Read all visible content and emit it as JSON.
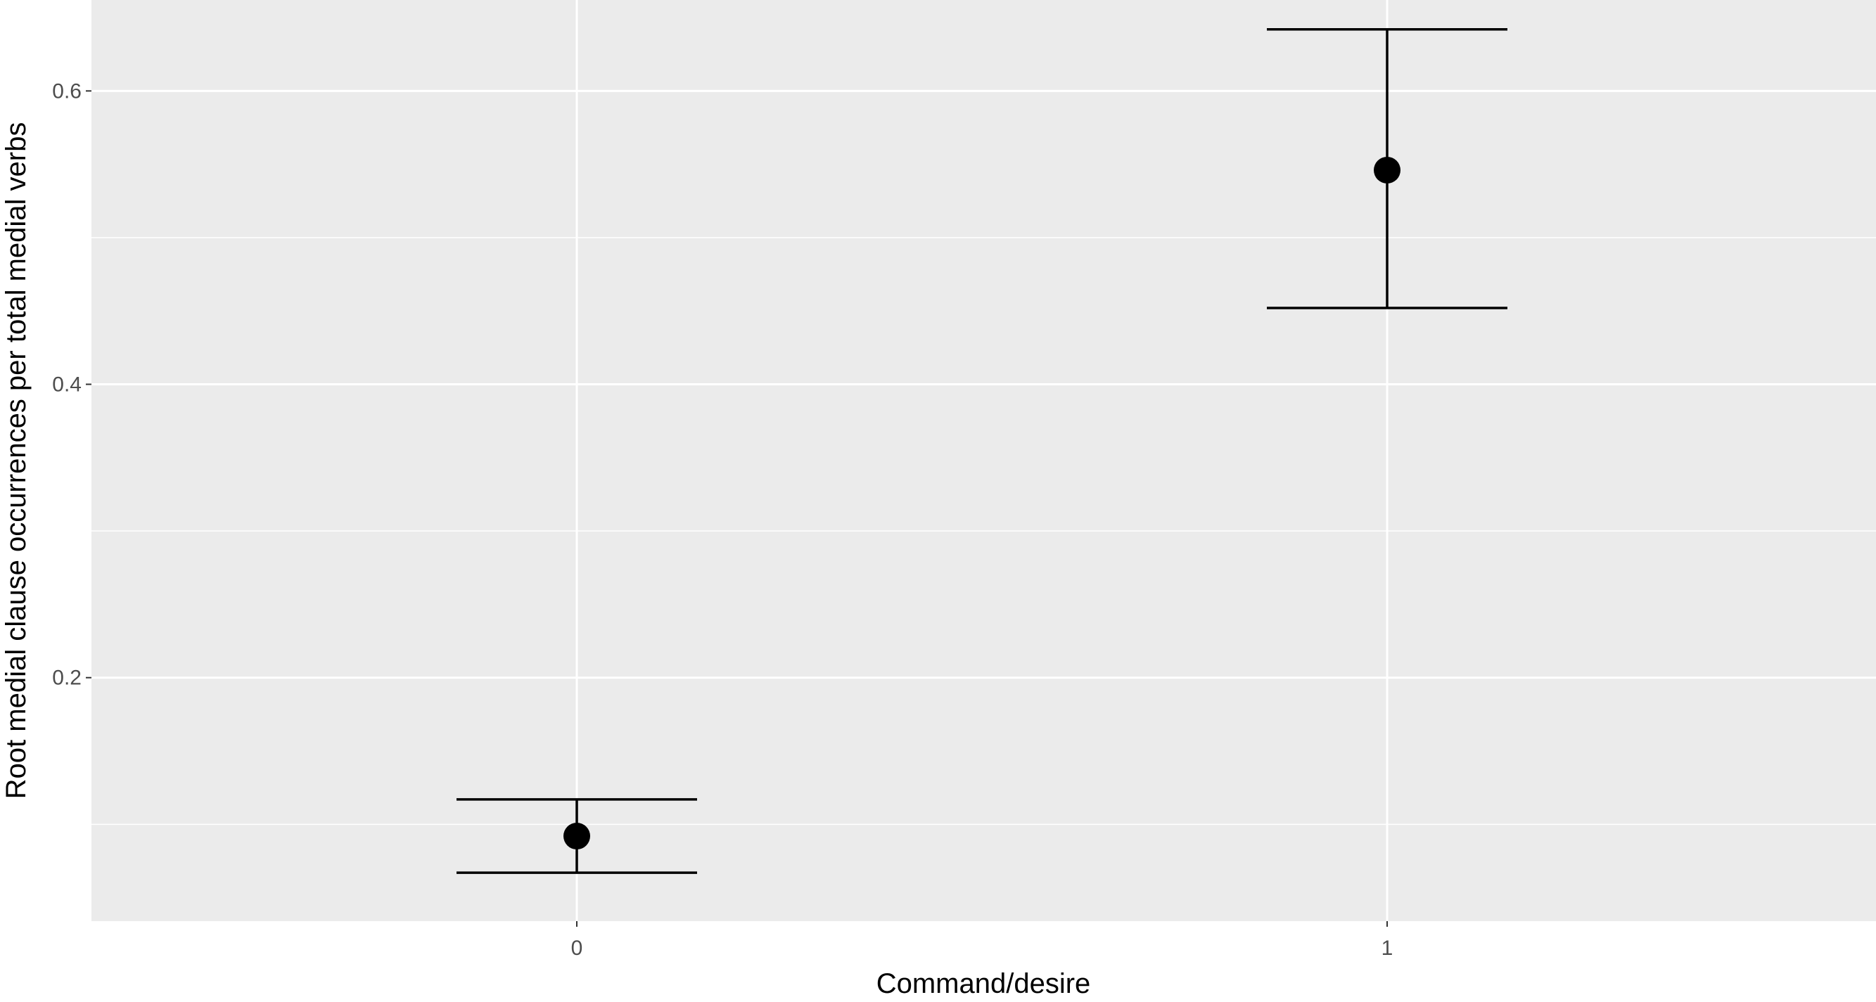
{
  "chart_data": {
    "type": "scatter",
    "title": "",
    "xlabel": "Command/desire",
    "ylabel": "Root medial clause occurrences per total medial verbs",
    "categories": [
      "0",
      "1"
    ],
    "series": [
      {
        "points": [
          {
            "x": "0",
            "y": 0.092,
            "ymin": 0.067,
            "ymax": 0.117
          },
          {
            "x": "1",
            "y": 0.546,
            "ymin": 0.452,
            "ymax": 0.642
          }
        ]
      }
    ],
    "ylim": [
      0.034,
      0.662
    ],
    "yticks": [
      0.2,
      0.4,
      0.6
    ],
    "yticks_labels": [
      "0.2",
      "0.4",
      "0.6"
    ],
    "grid": true,
    "legend": "none",
    "colors": {
      "panel_background": "#EBEBEB",
      "grid_major": "#FFFFFF",
      "marker": "#000000",
      "tick_text": "#4D4D4D"
    }
  }
}
